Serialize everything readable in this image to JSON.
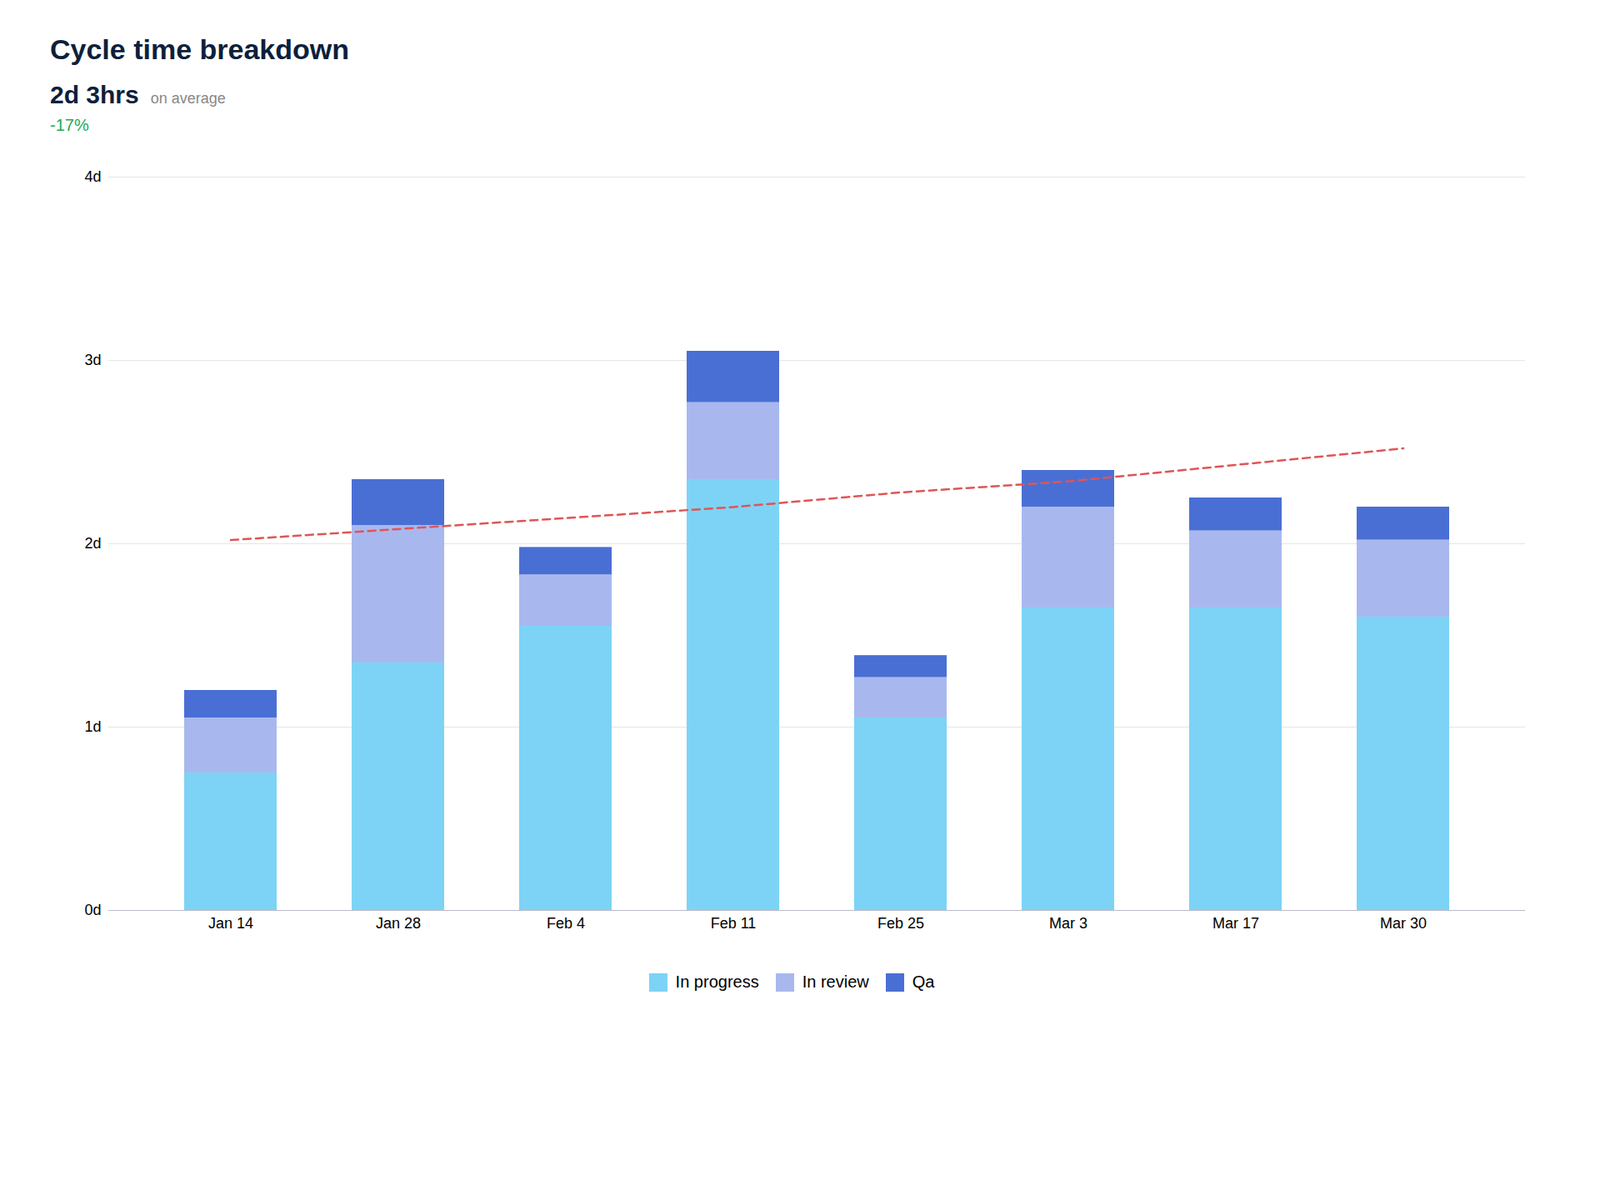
{
  "chart_data": {
    "type": "bar",
    "title": "Cycle time breakdown",
    "subtitle": "2d 3hrs",
    "annotations": [
      {
        "text": "on average"
      },
      {
        "text": "-17%",
        "color": "#22AA55"
      }
    ],
    "categories": [
      "Jan 14",
      "Jan 28",
      "Feb 4",
      "Feb 11",
      "Feb 25",
      "Mar 3",
      "Mar 17",
      "Mar 30"
    ],
    "stacked": true,
    "series": [
      {
        "name": "In progress",
        "color": "#7DD3F5",
        "values": [
          0.75,
          1.35,
          1.55,
          2.35,
          1.05,
          1.65,
          1.65,
          1.6
        ]
      },
      {
        "name": "In review",
        "color": "#A8B8EE",
        "values": [
          0.3,
          0.75,
          0.28,
          0.42,
          0.22,
          0.55,
          0.42,
          0.42
        ]
      },
      {
        "name": "Qa",
        "color": "#4A6FD4",
        "values": [
          0.15,
          0.25,
          0.15,
          0.28,
          0.12,
          0.2,
          0.18,
          0.18
        ]
      },
      {
        "type": "line",
        "color": "#E05555",
        "line_style": "dashed",
        "values": [
          2.02,
          2.08,
          2.14,
          2.2,
          2.28,
          2.34,
          2.43,
          2.52
        ]
      }
    ],
    "ylim": [
      0,
      4
    ],
    "yticks": [
      {
        "value": 0,
        "label": "0d"
      },
      {
        "value": 1,
        "label": "1d"
      },
      {
        "value": 2,
        "label": "2d"
      },
      {
        "value": 3,
        "label": "3d"
      },
      {
        "value": 4,
        "label": "4d"
      }
    ],
    "grid": true,
    "legend": "bottom"
  }
}
